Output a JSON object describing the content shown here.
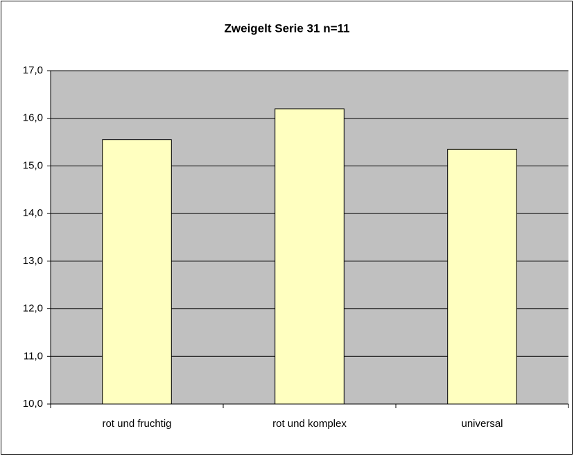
{
  "chart_data": {
    "type": "bar",
    "title": "Zweigelt Serie 31 n=11",
    "categories": [
      "rot und fruchtig",
      "rot und komplex",
      "universal"
    ],
    "values": [
      15.55,
      16.2,
      15.35
    ],
    "color": "#ffffc0",
    "ylim": [
      10,
      17
    ],
    "yticks": [
      {
        "value": 10,
        "label": "10,0"
      },
      {
        "value": 11,
        "label": "11,0"
      },
      {
        "value": 12,
        "label": "12,0"
      },
      {
        "value": 13,
        "label": "13,0"
      },
      {
        "value": 14,
        "label": "14,0"
      },
      {
        "value": 15,
        "label": "15,0"
      },
      {
        "value": 16,
        "label": "16,0"
      },
      {
        "value": 17,
        "label": "17,0"
      }
    ],
    "grid": true,
    "plot_background": "#c0c0c0"
  }
}
